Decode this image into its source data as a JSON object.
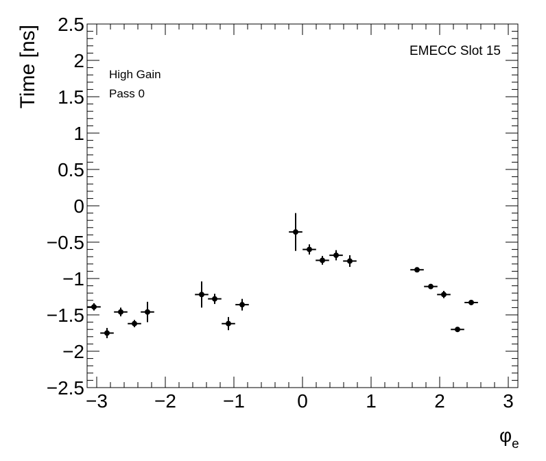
{
  "chart_data": {
    "type": "scatter",
    "title": "",
    "xlabel_main": "φ",
    "xlabel_sub": "e",
    "ylabel": "Time [ns]",
    "xlim": [
      -3.14,
      3.14
    ],
    "ylim": [
      -2.5,
      2.5
    ],
    "x_ticks": [
      "−3",
      "−2",
      "−1",
      "0",
      "1",
      "2",
      "3"
    ],
    "x_tick_values": [
      -3,
      -2,
      -1,
      0,
      1,
      2,
      3
    ],
    "y_ticks": [
      "2.5",
      "2",
      "1.5",
      "1",
      "0.5",
      "0",
      "−0.5",
      "−1",
      "−1.5",
      "−2",
      "−2.5"
    ],
    "y_tick_values": [
      2.5,
      2,
      1.5,
      1,
      0.5,
      0,
      -0.5,
      -1,
      -1.5,
      -2,
      -2.5
    ],
    "grid": false,
    "x_bin_halfwidth": 0.098,
    "annotations": {
      "slot": "EMECC Slot 15",
      "gain": "High Gain",
      "pass": "Pass 0"
    },
    "points": [
      {
        "x": -3.04,
        "y": -1.39,
        "yerr": 0.05
      },
      {
        "x": -2.85,
        "y": -1.75,
        "yerr": 0.07
      },
      {
        "x": -2.65,
        "y": -1.46,
        "yerr": 0.06
      },
      {
        "x": -2.45,
        "y": -1.62,
        "yerr": 0.05
      },
      {
        "x": -2.26,
        "y": -1.46,
        "yerr": 0.14
      },
      {
        "x": -1.47,
        "y": -1.22,
        "yerr": 0.18
      },
      {
        "x": -1.28,
        "y": -1.28,
        "yerr": 0.07
      },
      {
        "x": -1.08,
        "y": -1.62,
        "yerr": 0.09
      },
      {
        "x": -0.88,
        "y": -1.36,
        "yerr": 0.08
      },
      {
        "x": -0.1,
        "y": -0.36,
        "yerr": 0.26
      },
      {
        "x": 0.1,
        "y": -0.6,
        "yerr": 0.07
      },
      {
        "x": 0.29,
        "y": -0.75,
        "yerr": 0.06
      },
      {
        "x": 0.49,
        "y": -0.68,
        "yerr": 0.07
      },
      {
        "x": 0.69,
        "y": -0.76,
        "yerr": 0.08
      },
      {
        "x": 1.67,
        "y": -0.88,
        "yerr": 0.02
      },
      {
        "x": 1.87,
        "y": -1.11,
        "yerr": 0.02
      },
      {
        "x": 2.06,
        "y": -1.22,
        "yerr": 0.05
      },
      {
        "x": 2.26,
        "y": -1.7,
        "yerr": 0.02
      },
      {
        "x": 2.46,
        "y": -1.33,
        "yerr": 0.03
      }
    ]
  }
}
